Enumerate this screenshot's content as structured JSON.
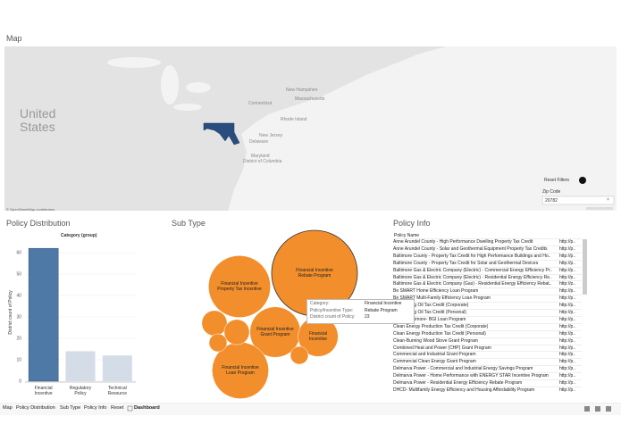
{
  "map": {
    "title": "Map",
    "labels": [
      "United States",
      "New Hampshire",
      "Massachusetts",
      "Rhode Island",
      "Connecticut",
      "New Jersey",
      "Delaware",
      "Maryland",
      "District of Columbia"
    ],
    "attribution": "© OpenStreetMap contributors",
    "reset_filters": "Reset Filters",
    "zip_label": "Zip Code",
    "zip_value": "20782"
  },
  "policy_distribution": {
    "title": "Policy Distribution",
    "type": "bar",
    "legend_title": "Category (group)",
    "y_label": "District count of Policy",
    "categories": [
      "Financial\nIncentive",
      "Regulatory\nPolicy",
      "Technical\nResource"
    ],
    "values": [
      62,
      14,
      12
    ],
    "colors": [
      "#4e79a7",
      "#d4dce8",
      "#d4dce8"
    ],
    "ylim": [
      0,
      65
    ],
    "yticks": [
      0,
      10,
      20,
      30,
      40,
      50,
      60
    ],
    "grid": true
  },
  "sub_type": {
    "title": "Sub Type",
    "type": "bubble",
    "color": "#f28e2b",
    "bubbles": [
      {
        "label": "Financial Incentive\nRebate Program",
        "value": 23
      },
      {
        "label": "Financial Incentive\nProperty Tax Incentive",
        "value": 12
      },
      {
        "label": "Financial Incentive\nGrant Program",
        "value": 8
      },
      {
        "label": "Financial\nIncentive",
        "value": 5
      },
      {
        "label": "Financial Incentive\nLoan Program",
        "value": 10
      },
      {
        "label": null,
        "value": 2
      },
      {
        "label": null,
        "value": 2
      },
      {
        "label": null,
        "value": 1
      },
      {
        "label": null,
        "value": 1
      }
    ],
    "tooltip": [
      {
        "label": "Category:",
        "value": "Financial Incentive"
      },
      {
        "label": "Policy/Incentive Type:",
        "value": "Rebate Program"
      },
      {
        "label": "District count of Policy:",
        "value": 23
      }
    ]
  },
  "policy_info": {
    "title": "Policy Info",
    "header": "Policy Name",
    "rows": [
      [
        "Anne Arundel County - High Performance Dwelling Property Tax Credit",
        "http://p.."
      ],
      [
        "Anne Arundel County - Solar and Geothermal Equipment Property Tax Credits",
        "http://p.."
      ],
      [
        "Baltimore County - Property Tax Credit for High Performance Buildings and Ho..",
        "http://p.."
      ],
      [
        "Baltimore County - Property Tax Credit for Solar and Geothermal Devices",
        "http://p.."
      ],
      [
        "Baltimore Gas & Electric Company (Electric) - Commercial Energy Efficiency Pr..",
        "http://p.."
      ],
      [
        "Baltimore Gas & Electric Company (Electric) - Residential Energy Efficiency Re..",
        "http://p.."
      ],
      [
        "Baltimore Gas & Electric Company (Gas) - Residential Energy Efficiency Rebat..",
        "http://p.."
      ],
      [
        "Be SMART Home Efficiency Loan Program",
        "http://p.."
      ],
      [
        "Be SMART Multi-Family Efficiency Loan Program",
        "http://p.."
      ],
      [
        "Bio-Heating Oil Tax Credit (Corporate)",
        "http://p.."
      ],
      [
        "Bio-Heating Oil Tax Credit (Personal)",
        "http://p.."
      ],
      [
        "City of Baltimore- BGI Loan Program",
        "http://p.."
      ],
      [
        "Clean Energy Production Tax Credit (Corporate)",
        "http://p.."
      ],
      [
        "Clean Energy Production Tax Credit (Personal)",
        "http://p.."
      ],
      [
        "Clean-Burning Wood Stove Grant Program",
        "http://p.."
      ],
      [
        "Combined Heat and Power (CHP) Grant Program",
        "http://p.."
      ],
      [
        "Commercial and Industrial Grant Program",
        "http://p.."
      ],
      [
        "Commercial Clean Energy Grant Program",
        "http://p.."
      ],
      [
        "Delmarva Power - Commercial and Industrial Energy Savings Program",
        "http://p.."
      ],
      [
        "Delmarva Power - Home Performance with ENERGY STAR Incentive Program",
        "http://p.."
      ],
      [
        "Delmarva Power - Residential Energy Efficiency Rebate Program",
        "http://p.."
      ],
      [
        "DHCD- Multifamily Energy Efficiency and Housing Affordability Program",
        "http://p.."
      ]
    ]
  },
  "tabs": [
    "Map",
    "Policy Distribution",
    "Sub Type",
    "Policy Info",
    "Reset",
    "Dashboard"
  ]
}
